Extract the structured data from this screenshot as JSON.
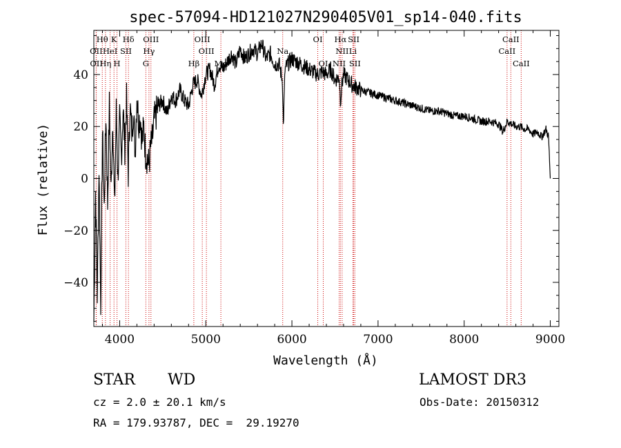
{
  "chart_data": {
    "type": "line",
    "title": "spec-57094-HD121027N290405V01_sp14-040.fits",
    "xlabel": "Wavelength (Å)",
    "ylabel": "Flux (relative)",
    "xlim": [
      3700,
      9100
    ],
    "ylim": [
      -57,
      57
    ],
    "x_ticks": [
      4000,
      5000,
      6000,
      7000,
      8000,
      9000
    ],
    "y_ticks": [
      -40,
      -20,
      0,
      20,
      40
    ],
    "grid": false,
    "series": [
      {
        "name": "flux",
        "x": [
          3700,
          3720,
          3740,
          3760,
          3780,
          3800,
          3820,
          3840,
          3860,
          3880,
          3900,
          3920,
          3940,
          3960,
          3980,
          4000,
          4020,
          4040,
          4060,
          4080,
          4100,
          4120,
          4140,
          4160,
          4180,
          4200,
          4220,
          4240,
          4260,
          4280,
          4300,
          4320,
          4340,
          4360,
          4380,
          4400,
          4450,
          4500,
          4550,
          4600,
          4650,
          4700,
          4750,
          4800,
          4850,
          4900,
          4950,
          5000,
          5050,
          5100,
          5150,
          5200,
          5250,
          5300,
          5350,
          5400,
          5450,
          5500,
          5550,
          5600,
          5650,
          5700,
          5750,
          5800,
          5850,
          5890,
          5900,
          5920,
          5950,
          6000,
          6050,
          6100,
          6150,
          6200,
          6250,
          6300,
          6350,
          6400,
          6450,
          6500,
          6550,
          6563,
          6580,
          6600,
          6650,
          6700,
          6750,
          6800,
          6900,
          7000,
          7100,
          7200,
          7300,
          7400,
          7500,
          7600,
          7700,
          7800,
          7900,
          8000,
          8100,
          8200,
          8300,
          8400,
          8450,
          8500,
          8550,
          8600,
          8650,
          8700,
          8750,
          8800,
          8850,
          8900,
          8950,
          8980,
          9000
        ],
        "y": [
          -55,
          -5,
          -45,
          5,
          -48,
          18,
          -12,
          25,
          -10,
          28,
          -5,
          24,
          -12,
          26,
          0,
          22,
          8,
          27,
          12,
          30,
          2,
          28,
          18,
          26,
          10,
          32,
          22,
          24,
          14,
          20,
          10,
          8,
          5,
          12,
          15,
          22,
          28,
          30,
          25,
          32,
          30,
          34,
          30,
          28,
          36,
          38,
          32,
          40,
          42,
          36,
          44,
          42,
          45,
          48,
          44,
          50,
          46,
          48,
          50,
          48,
          52,
          46,
          48,
          44,
          44,
          38,
          20,
          42,
          44,
          46,
          45,
          44,
          43,
          42,
          41,
          40,
          41,
          40,
          42,
          38,
          39,
          30,
          36,
          40,
          38,
          36,
          35,
          34,
          33,
          32,
          31,
          30,
          29,
          28,
          27,
          26,
          26,
          25,
          24,
          24,
          23,
          22,
          22,
          21,
          18,
          22,
          21,
          20,
          20,
          19,
          19,
          17,
          18,
          16,
          19,
          16,
          0
        ]
      }
    ],
    "spectral_lines": [
      {
        "label": "Hθ",
        "x": 3798,
        "row": 1
      },
      {
        "label": "K",
        "x": 3934,
        "row": 1
      },
      {
        "label": "Hδ",
        "x": 4102,
        "row": 1
      },
      {
        "label": "OIII",
        "x": 4363,
        "row": 1
      },
      {
        "label": "OIII",
        "x": 4959,
        "row": 1
      },
      {
        "label": "OI",
        "x": 6300,
        "row": 1
      },
      {
        "label": "Hα",
        "x": 6563,
        "row": 1
      },
      {
        "label": "SII",
        "x": 6717,
        "row": 1
      },
      {
        "label": "CaII",
        "x": 8542,
        "row": 1
      },
      {
        "label": "OII",
        "x": 3727,
        "row": 2
      },
      {
        "label": "HeI",
        "x": 3889,
        "row": 2
      },
      {
        "label": "SII",
        "x": 4072,
        "row": 2
      },
      {
        "label": "Hγ",
        "x": 4340,
        "row": 2
      },
      {
        "label": "OIII",
        "x": 5007,
        "row": 2
      },
      {
        "label": "Na",
        "x": 5893,
        "row": 2
      },
      {
        "label": "NII",
        "x": 6583,
        "row": 2
      },
      {
        "label": "Li",
        "x": 6708,
        "row": 2
      },
      {
        "label": "CaII",
        "x": 8498,
        "row": 2
      },
      {
        "label": "OII",
        "x": 3729,
        "row": 3
      },
      {
        "label": "Hη",
        "x": 3835,
        "row": 3
      },
      {
        "label": "H",
        "x": 3969,
        "row": 3
      },
      {
        "label": "G",
        "x": 4304,
        "row": 3
      },
      {
        "label": "Hβ",
        "x": 4861,
        "row": 3
      },
      {
        "label": "Mg",
        "x": 5175,
        "row": 3
      },
      {
        "label": "OI",
        "x": 6364,
        "row": 3
      },
      {
        "label": "NII",
        "x": 6548,
        "row": 3
      },
      {
        "label": "SII",
        "x": 6731,
        "row": 3
      },
      {
        "label": "CaII",
        "x": 8662,
        "row": 3
      }
    ],
    "line_color": "#000000",
    "marker_color": "#cc0000"
  },
  "info": {
    "class": "STAR",
    "subclass": "WD",
    "survey": "LAMOST DR3",
    "cz": "cz = 2.0 ± 20.1 km/s",
    "obs_date": "Obs-Date: 20150312",
    "coords": "RA = 179.93787, DEC =  29.19270"
  }
}
